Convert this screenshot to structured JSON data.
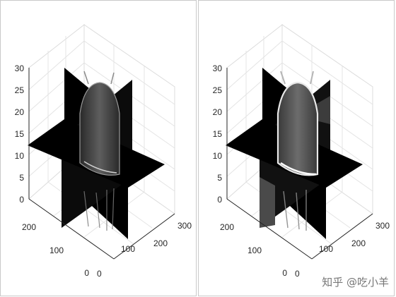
{
  "panels": [
    {
      "name": "left",
      "z_ticks": [
        "0",
        "5",
        "10",
        "15",
        "20",
        "25",
        "30"
      ],
      "y_ticks": [
        "0",
        "100",
        "200"
      ],
      "x_ticks": [
        "0",
        "100",
        "200",
        "300"
      ]
    },
    {
      "name": "right",
      "z_ticks": [
        "0",
        "5",
        "10",
        "15",
        "20",
        "25",
        "30"
      ],
      "y_ticks": [
        "0",
        "100",
        "200"
      ],
      "x_ticks": [
        "0",
        "100",
        "200",
        "300"
      ]
    }
  ],
  "watermark": "知乎 @吃小羊"
}
